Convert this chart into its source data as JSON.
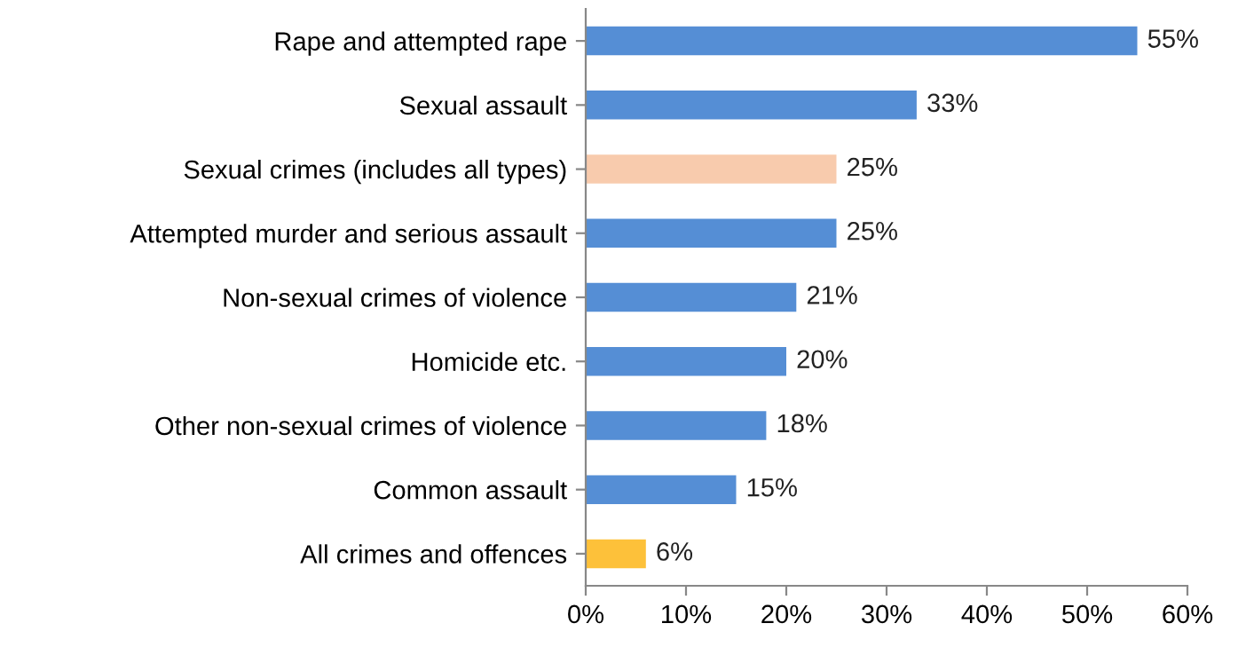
{
  "chart_data": {
    "type": "bar",
    "orientation": "horizontal",
    "categories": [
      "Rape and attempted rape",
      "Sexual assault",
      "Sexual crimes (includes all types)",
      "Attempted murder and serious assault",
      "Non-sexual crimes of violence",
      "Homicide etc.",
      "Other non-sexual crimes of violence",
      "Common assault",
      "All crimes and offences"
    ],
    "values": [
      55,
      33,
      25,
      25,
      21,
      20,
      18,
      15,
      6
    ],
    "value_labels": [
      "55%",
      "33%",
      "25%",
      "25%",
      "21%",
      "20%",
      "18%",
      "15%",
      "6%"
    ],
    "colors": [
      "#558ed5",
      "#558ed5",
      "#f8cbad",
      "#558ed5",
      "#558ed5",
      "#558ed5",
      "#558ed5",
      "#558ed5",
      "#fdc13a"
    ],
    "xlim": [
      0,
      60
    ],
    "xticks": [
      {
        "value": 0,
        "label": "0%"
      },
      {
        "value": 10,
        "label": "10%"
      },
      {
        "value": 20,
        "label": "20%"
      },
      {
        "value": 30,
        "label": "30%"
      },
      {
        "value": 40,
        "label": "40%"
      },
      {
        "value": 50,
        "label": "50%"
      },
      {
        "value": 60,
        "label": "60%"
      }
    ],
    "grid": false,
    "legend": false
  }
}
